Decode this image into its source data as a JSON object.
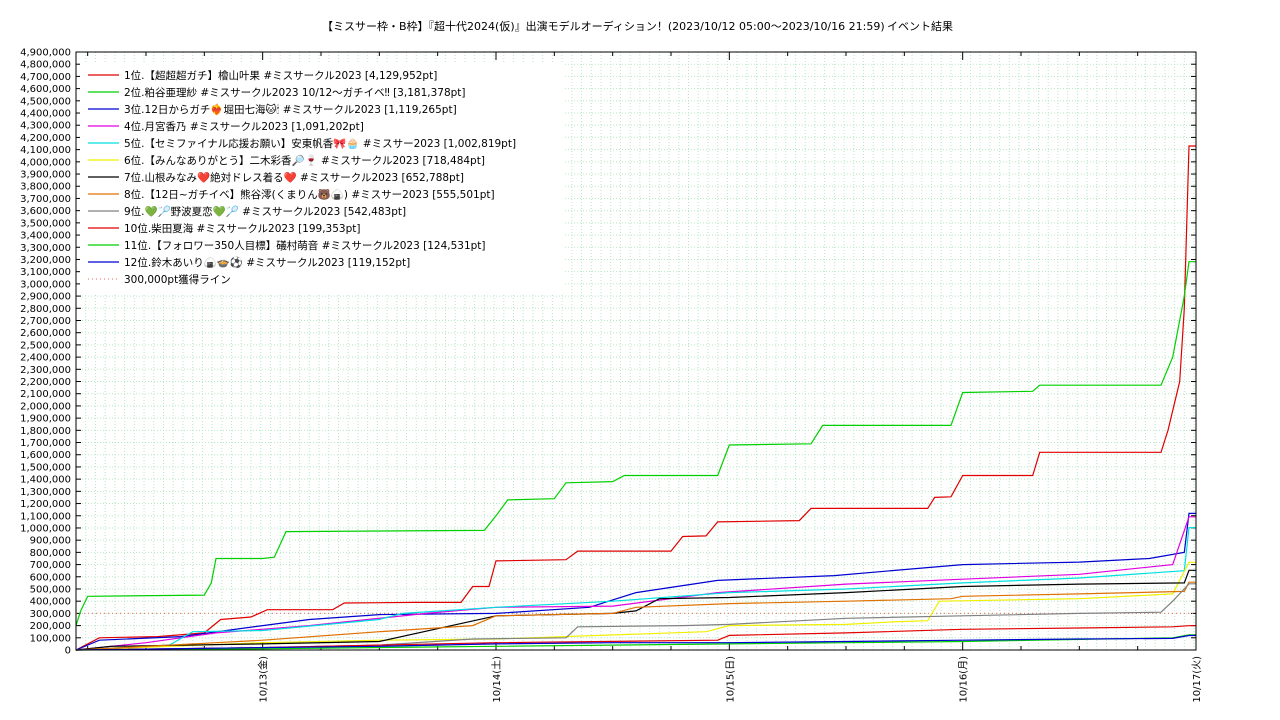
{
  "colors": {
    "grid": "#b8e8c8",
    "axis": "#000000",
    "background": "#ffffff"
  },
  "chart_data": {
    "type": "line",
    "title": "【ミスサー枠・B枠】『超十代2024(仮)』出演モデルオーディション！(2023/10/12 05:00〜2023/10/16 21:59)",
    "subtitle": "イベント結果",
    "xlabel": "",
    "ylabel": "",
    "x_unit": "days since 2023/10/12 00:00",
    "xlim": [
      0.2,
      5.0
    ],
    "ylim": [
      0,
      4900000
    ],
    "y_tick_step": 100000,
    "x_ticks": [
      {
        "x": 1,
        "label": "10/13(金)"
      },
      {
        "x": 2,
        "label": "10/14(土)"
      },
      {
        "x": 3,
        "label": "10/15(日)"
      },
      {
        "x": 4,
        "label": "10/16(月)"
      },
      {
        "x": 5,
        "label": "10/17(火)"
      }
    ],
    "grid": true,
    "legend_position": "top-left",
    "reference_line": {
      "name": "300,000pt獲得ライン",
      "value": 300000,
      "color": "#f08080",
      "style": "dotted"
    },
    "series": [
      {
        "name": "1位.【超超超ガチ】檜山叶果 #ミスサークル2023 [4,129,952pt]",
        "color": "#e00000",
        "points": [
          [
            0.2,
            0
          ],
          [
            0.3,
            100000
          ],
          [
            0.55,
            110000
          ],
          [
            0.75,
            140000
          ],
          [
            0.82,
            250000
          ],
          [
            0.95,
            270000
          ],
          [
            1.02,
            330000
          ],
          [
            1.3,
            330000
          ],
          [
            1.35,
            385000
          ],
          [
            1.65,
            390000
          ],
          [
            1.85,
            390000
          ],
          [
            1.9,
            520000
          ],
          [
            1.97,
            520000
          ],
          [
            2.0,
            730000
          ],
          [
            2.3,
            740000
          ],
          [
            2.35,
            810000
          ],
          [
            2.75,
            810000
          ],
          [
            2.8,
            930000
          ],
          [
            2.9,
            935000
          ],
          [
            2.95,
            1050000
          ],
          [
            3.3,
            1060000
          ],
          [
            3.35,
            1160000
          ],
          [
            3.85,
            1160000
          ],
          [
            3.88,
            1250000
          ],
          [
            3.95,
            1255000
          ],
          [
            4.0,
            1430000
          ],
          [
            4.3,
            1430000
          ],
          [
            4.33,
            1620000
          ],
          [
            4.6,
            1620000
          ],
          [
            4.85,
            1620000
          ],
          [
            4.88,
            1800000
          ],
          [
            4.93,
            2200000
          ],
          [
            4.95,
            2800000
          ],
          [
            4.97,
            4129952
          ],
          [
            5.0,
            4129952
          ]
        ]
      },
      {
        "name": "2位.粕谷亜理紗 #ミスサークル2023 10/12〜ガチイベ‼ [3,181,378pt]",
        "color": "#00d000",
        "points": [
          [
            0.2,
            200000
          ],
          [
            0.22,
            320000
          ],
          [
            0.25,
            440000
          ],
          [
            0.75,
            450000
          ],
          [
            0.78,
            550000
          ],
          [
            0.8,
            750000
          ],
          [
            1.0,
            750000
          ],
          [
            1.05,
            760000
          ],
          [
            1.1,
            970000
          ],
          [
            1.95,
            980000
          ],
          [
            2.0,
            1100000
          ],
          [
            2.05,
            1230000
          ],
          [
            2.25,
            1240000
          ],
          [
            2.3,
            1370000
          ],
          [
            2.5,
            1380000
          ],
          [
            2.55,
            1430000
          ],
          [
            2.95,
            1430000
          ],
          [
            3.0,
            1680000
          ],
          [
            3.35,
            1690000
          ],
          [
            3.4,
            1840000
          ],
          [
            3.95,
            1840000
          ],
          [
            4.0,
            2110000
          ],
          [
            4.3,
            2120000
          ],
          [
            4.33,
            2170000
          ],
          [
            4.85,
            2170000
          ],
          [
            4.9,
            2400000
          ],
          [
            4.95,
            2900000
          ],
          [
            4.97,
            3181378
          ],
          [
            5.0,
            3181378
          ]
        ]
      },
      {
        "name": "3位.12日からガチ❤‍🔥堀田七海🐱🕯 #ミスサークル2023 [1,119,265pt]",
        "color": "#0000d0",
        "points": [
          [
            0.2,
            0
          ],
          [
            0.3,
            80000
          ],
          [
            0.65,
            110000
          ],
          [
            1.0,
            200000
          ],
          [
            1.2,
            250000
          ],
          [
            1.5,
            290000
          ],
          [
            2.0,
            300000
          ],
          [
            2.4,
            350000
          ],
          [
            2.6,
            470000
          ],
          [
            2.95,
            570000
          ],
          [
            3.45,
            610000
          ],
          [
            4.0,
            700000
          ],
          [
            4.5,
            720000
          ],
          [
            4.8,
            750000
          ],
          [
            4.95,
            800000
          ],
          [
            4.97,
            1119265
          ],
          [
            5.0,
            1119265
          ]
        ]
      },
      {
        "name": "4位.月宮香乃 #ミスサークル2023 [1,091,202pt]",
        "color": "#e000e0",
        "points": [
          [
            0.2,
            0
          ],
          [
            0.5,
            60000
          ],
          [
            0.8,
            140000
          ],
          [
            1.2,
            200000
          ],
          [
            1.7,
            300000
          ],
          [
            2.0,
            350000
          ],
          [
            2.5,
            360000
          ],
          [
            2.95,
            470000
          ],
          [
            3.5,
            540000
          ],
          [
            4.0,
            580000
          ],
          [
            4.5,
            620000
          ],
          [
            4.9,
            700000
          ],
          [
            4.97,
            1091202
          ],
          [
            5.0,
            1091202
          ]
        ]
      },
      {
        "name": "5位.【セミファイナル応援お願い】安東帆香🎀🧁 #ミスサー2023 [1,002,819pt]",
        "color": "#00e0e0",
        "points": [
          [
            0.2,
            0
          ],
          [
            0.6,
            40000
          ],
          [
            0.7,
            150000
          ],
          [
            1.0,
            160000
          ],
          [
            1.5,
            250000
          ],
          [
            1.6,
            300000
          ],
          [
            2.0,
            350000
          ],
          [
            2.5,
            400000
          ],
          [
            3.0,
            470000
          ],
          [
            3.5,
            500000
          ],
          [
            4.0,
            550000
          ],
          [
            4.5,
            590000
          ],
          [
            4.95,
            650000
          ],
          [
            4.97,
            1002819
          ],
          [
            5.0,
            1002819
          ]
        ]
      },
      {
        "name": "6位.【みんなありがとう】二木彩香🔎🍷 #ミスサークル2023 [718,484pt]",
        "color": "#f0f000",
        "points": [
          [
            0.2,
            0
          ],
          [
            1.0,
            60000
          ],
          [
            1.5,
            80000
          ],
          [
            2.0,
            90000
          ],
          [
            2.9,
            150000
          ],
          [
            3.0,
            200000
          ],
          [
            3.5,
            210000
          ],
          [
            3.7,
            230000
          ],
          [
            3.85,
            240000
          ],
          [
            3.9,
            400000
          ],
          [
            4.5,
            420000
          ],
          [
            4.9,
            460000
          ],
          [
            4.97,
            718484
          ],
          [
            5.0,
            718484
          ]
        ]
      },
      {
        "name": "7位.山根みなみ❤️絶対ドレス着る❤️ #ミスサークル2023 [652,788pt]",
        "color": "#000000",
        "points": [
          [
            0.2,
            0
          ],
          [
            0.35,
            30000
          ],
          [
            1.0,
            50000
          ],
          [
            1.5,
            70000
          ],
          [
            2.0,
            280000
          ],
          [
            2.5,
            300000
          ],
          [
            2.6,
            320000
          ],
          [
            2.7,
            420000
          ],
          [
            3.0,
            430000
          ],
          [
            3.5,
            470000
          ],
          [
            4.0,
            520000
          ],
          [
            4.5,
            540000
          ],
          [
            4.95,
            550000
          ],
          [
            4.97,
            652788
          ],
          [
            5.0,
            652788
          ]
        ]
      },
      {
        "name": "8位.【12日~ガチイベ】熊谷澪(くまりん🐻🍙) #ミスサー2023 [555,501pt]",
        "color": "#e07000",
        "points": [
          [
            0.2,
            0
          ],
          [
            0.8,
            60000
          ],
          [
            1.0,
            80000
          ],
          [
            1.5,
            150000
          ],
          [
            1.9,
            200000
          ],
          [
            2.0,
            280000
          ],
          [
            2.5,
            300000
          ],
          [
            2.6,
            350000
          ],
          [
            3.0,
            380000
          ],
          [
            3.5,
            400000
          ],
          [
            3.95,
            420000
          ],
          [
            4.0,
            440000
          ],
          [
            4.5,
            460000
          ],
          [
            4.95,
            480000
          ],
          [
            4.97,
            555501
          ],
          [
            5.0,
            555501
          ]
        ]
      },
      {
        "name": "9位.💚🏸野波夏恋💚🏸 #ミスサークル2023 [542,483pt]",
        "color": "#808080",
        "points": [
          [
            0.2,
            0
          ],
          [
            1.0,
            20000
          ],
          [
            1.5,
            40000
          ],
          [
            1.9,
            90000
          ],
          [
            2.3,
            100000
          ],
          [
            2.35,
            190000
          ],
          [
            2.8,
            200000
          ],
          [
            3.0,
            210000
          ],
          [
            3.5,
            260000
          ],
          [
            4.0,
            280000
          ],
          [
            4.5,
            300000
          ],
          [
            4.85,
            310000
          ],
          [
            4.9,
            400000
          ],
          [
            4.97,
            542483
          ],
          [
            5.0,
            542483
          ]
        ]
      },
      {
        "name": "10位.柴田夏海 #ミスサークル2023 [199,353pt]",
        "color": "#e00000",
        "points": [
          [
            0.2,
            0
          ],
          [
            1.0,
            20000
          ],
          [
            1.5,
            40000
          ],
          [
            2.0,
            60000
          ],
          [
            2.95,
            80000
          ],
          [
            3.0,
            120000
          ],
          [
            3.5,
            140000
          ],
          [
            4.0,
            170000
          ],
          [
            4.5,
            180000
          ],
          [
            4.9,
            190000
          ],
          [
            4.97,
            199353
          ],
          [
            5.0,
            199353
          ]
        ]
      },
      {
        "name": "11位.【フォロワー350人目標】礒村萌音 #ミスサークル2023 [124,531pt]",
        "color": "#00d000",
        "points": [
          [
            0.2,
            0
          ],
          [
            1.0,
            10000
          ],
          [
            2.0,
            30000
          ],
          [
            3.0,
            50000
          ],
          [
            3.5,
            60000
          ],
          [
            4.0,
            70000
          ],
          [
            4.9,
            100000
          ],
          [
            4.97,
            124531
          ],
          [
            5.0,
            124531
          ]
        ]
      },
      {
        "name": "12位.鈴木あいり🍙🍲⚽ #ミスサークル2023 [119,152pt]",
        "color": "#0000d0",
        "points": [
          [
            0.2,
            0
          ],
          [
            1.0,
            20000
          ],
          [
            1.5,
            30000
          ],
          [
            2.0,
            50000
          ],
          [
            2.5,
            60000
          ],
          [
            3.0,
            60000
          ],
          [
            3.5,
            70000
          ],
          [
            4.0,
            80000
          ],
          [
            4.5,
            90000
          ],
          [
            4.9,
            95000
          ],
          [
            4.97,
            119152
          ],
          [
            5.0,
            119152
          ]
        ]
      }
    ]
  }
}
